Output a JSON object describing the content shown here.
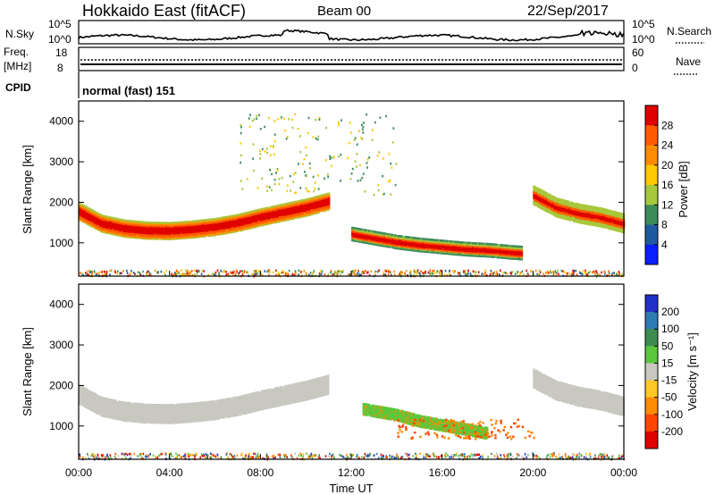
{
  "header": {
    "radar": "Hokkaido East (fitACF)",
    "beam": "Beam 00",
    "date": "22/Sep/2017"
  },
  "nsky": {
    "label": "N.Sky",
    "right_label": "N.Search",
    "ticks_left": [
      "10^5",
      "10^0"
    ],
    "ticks_right": [
      "10^5",
      "10^0"
    ]
  },
  "freq": {
    "label_line1": "Freq.",
    "label_line2": "[MHz]",
    "ticks_left": [
      "18",
      "8"
    ],
    "ticks_right": [
      "60",
      "0"
    ],
    "right_label": "Nave"
  },
  "cpid": {
    "label": "CPID",
    "text": "normal (fast) 151"
  },
  "x_axis": {
    "label": "Time UT",
    "ticks": [
      "00:00",
      "04:00",
      "08:00",
      "12:00",
      "16:00",
      "20:00",
      "00:00"
    ]
  },
  "power_panel": {
    "ylabel": "Slant Range [km]",
    "yticks": [
      "4000",
      "3000",
      "2000",
      "1000"
    ],
    "colorbar_label": "Power [dB]",
    "colorbar_ticks": [
      "28",
      "24",
      "20",
      "16",
      "12",
      "8",
      "4"
    ],
    "colorbar_colors": [
      "#e00000",
      "#ff5a00",
      "#ff8c00",
      "#ffc800",
      "#a8c83c",
      "#3c8c5a",
      "#1e5aa0",
      "#0a1eff"
    ]
  },
  "velocity_panel": {
    "ylabel": "Slant Range [km]",
    "yticks": [
      "4000",
      "3000",
      "2000",
      "1000"
    ],
    "colorbar_label": "Velocity [m s⁻¹]",
    "colorbar_ticks": [
      "200",
      "100",
      "50",
      "15",
      "-15",
      "-50",
      "-100",
      "-200"
    ],
    "colorbar_colors": [
      "#2030c8",
      "#2c7cb4",
      "#3c8c50",
      "#5ac83c",
      "#c8c8c0",
      "#ffc828",
      "#ff8c00",
      "#ff4600",
      "#e00000"
    ]
  },
  "chart_data": {
    "type": "heatmap",
    "title": "Hokkaido East (fitACF)",
    "xlabel": "Time UT",
    "ylabel": "Slant Range [km]",
    "x_range_hours": [
      0,
      24
    ],
    "y_range_km": [
      180,
      4500
    ],
    "x_ticks": [
      "00:00",
      "04:00",
      "08:00",
      "12:00",
      "16:00",
      "20:00",
      "00:00"
    ],
    "y_ticks": [
      1000,
      2000,
      3000,
      4000
    ],
    "power_band": {
      "hours": [
        0,
        1,
        2,
        3,
        4,
        5,
        6,
        7,
        8,
        9,
        10,
        11
      ],
      "range_km": [
        1800,
        1500,
        1380,
        1330,
        1320,
        1360,
        1420,
        1520,
        1660,
        1780,
        1900,
        2050
      ]
    },
    "power_band_late": {
      "hours": [
        12,
        13,
        14,
        15,
        16,
        17,
        18,
        19,
        19.5
      ],
      "range_km": [
        1250,
        1150,
        1050,
        980,
        930,
        880,
        850,
        800,
        780
      ]
    },
    "power_band_evening": {
      "hours": [
        20,
        21,
        22,
        23,
        24
      ],
      "range_km": [
        2200,
        1900,
        1750,
        1650,
        1500
      ]
    },
    "velocity_band": {
      "hours": [
        12.5,
        14,
        15,
        16,
        17,
        18
      ],
      "range_km": [
        1450,
        1300,
        1150,
        1050,
        950,
        850
      ],
      "velocity_ms": [
        30,
        25,
        30,
        25,
        20,
        10
      ]
    },
    "nsky_scale": [
      "10^0",
      "10^5"
    ],
    "freq_range_mhz": [
      8,
      18
    ],
    "nave_range": [
      0,
      60
    ]
  }
}
